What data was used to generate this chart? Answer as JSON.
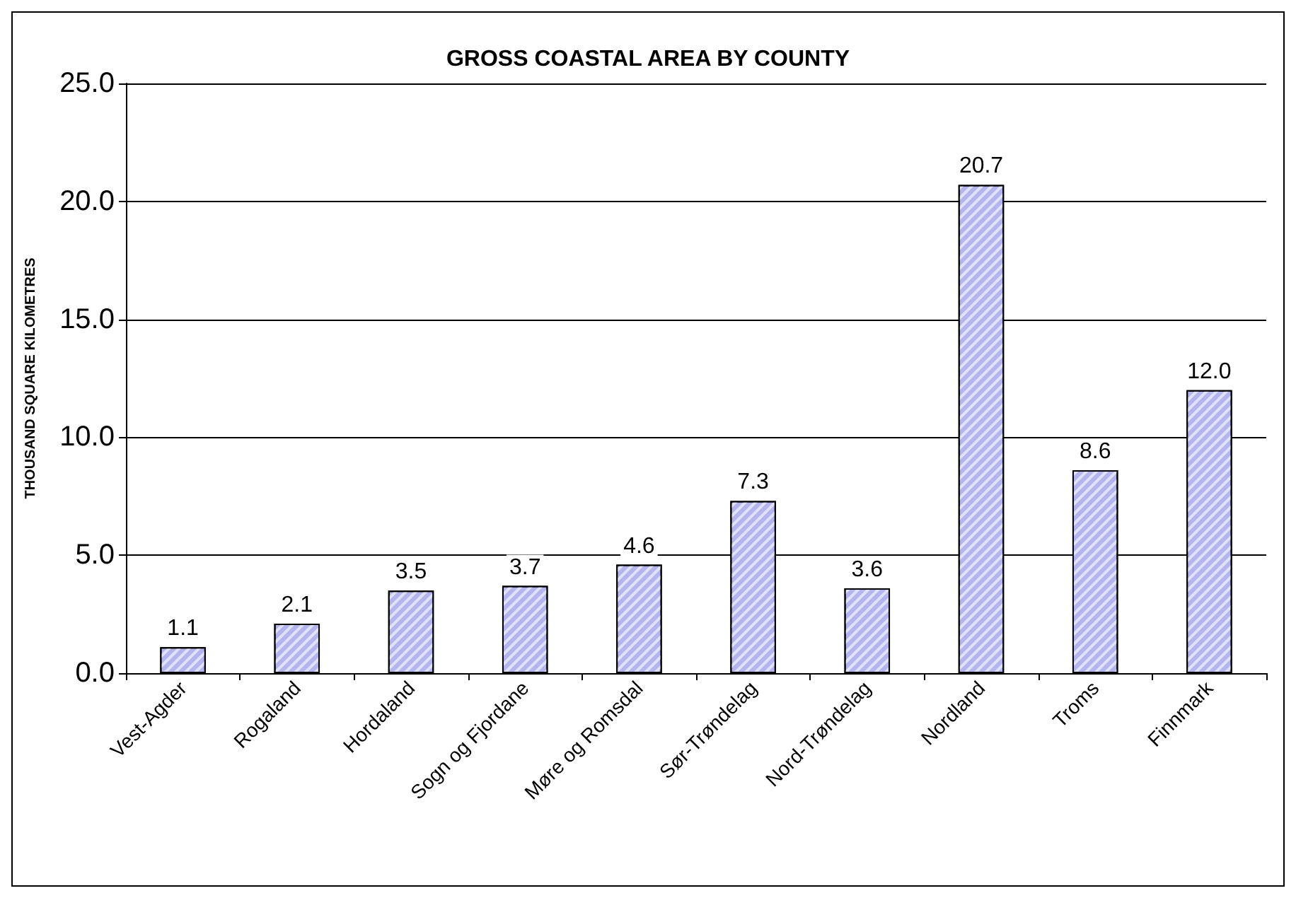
{
  "chart_data": {
    "type": "bar",
    "title": "GROSS COASTAL AREA BY COUNTY",
    "ylabel": "THOUSAND SQUARE KILOMETRES",
    "categories": [
      "Vest-Agder",
      "Rogaland",
      "Hordaland",
      "Sogn og Fjordane",
      "Møre og Romsdal",
      "Sør-Trøndelag",
      "Nord-Trøndelag",
      "Nordland",
      "Troms",
      "Finnmark"
    ],
    "values": [
      1.1,
      2.1,
      3.5,
      3.7,
      4.6,
      7.3,
      3.6,
      20.7,
      8.6,
      12.0
    ],
    "value_labels": [
      "1.1",
      "2.1",
      "3.5",
      "3.7",
      "4.6",
      "7.3",
      "3.6",
      "20.7",
      "8.6",
      "12.0"
    ],
    "color": "#b4b4ee",
    "ylim": [
      0,
      25
    ],
    "yticks": [
      {
        "value": 0,
        "label": "0.0"
      },
      {
        "value": 5,
        "label": "5.0"
      },
      {
        "value": 10,
        "label": "10.0"
      },
      {
        "value": 15,
        "label": "15.0"
      },
      {
        "value": 20,
        "label": "20.0"
      },
      {
        "value": 25,
        "label": "25.0"
      }
    ],
    "grid": "y"
  }
}
